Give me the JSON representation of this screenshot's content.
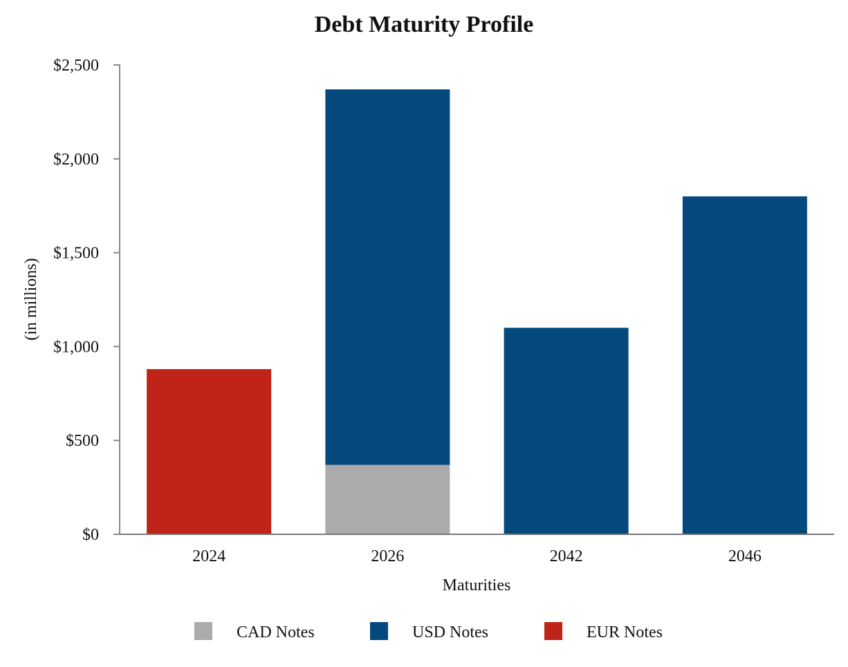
{
  "chart_data": {
    "type": "bar",
    "stacked": true,
    "title": "Debt Maturity Profile",
    "xlabel": "Maturities",
    "ylabel": "(in millions)",
    "categories": [
      "2024",
      "2026",
      "2042",
      "2046"
    ],
    "ylim": [
      0,
      2500
    ],
    "yticks": [
      {
        "value": 0,
        "label": "$0"
      },
      {
        "value": 500,
        "label": "$500"
      },
      {
        "value": 1000,
        "label": "$1,000"
      },
      {
        "value": 1500,
        "label": "$1,500"
      },
      {
        "value": 2000,
        "label": "$2,000"
      },
      {
        "value": 2500,
        "label": "$2,500"
      }
    ],
    "series": [
      {
        "name": "CAD Notes",
        "color": "#ababab",
        "values": [
          0,
          370,
          0,
          0
        ]
      },
      {
        "name": "USD Notes",
        "color": "#04497e",
        "values": [
          0,
          2000,
          1100,
          1800
        ]
      },
      {
        "name": "EUR Notes",
        "color": "#c02318",
        "values": [
          880,
          0,
          0,
          0
        ]
      }
    ],
    "legend_position": "bottom",
    "grid": false
  }
}
